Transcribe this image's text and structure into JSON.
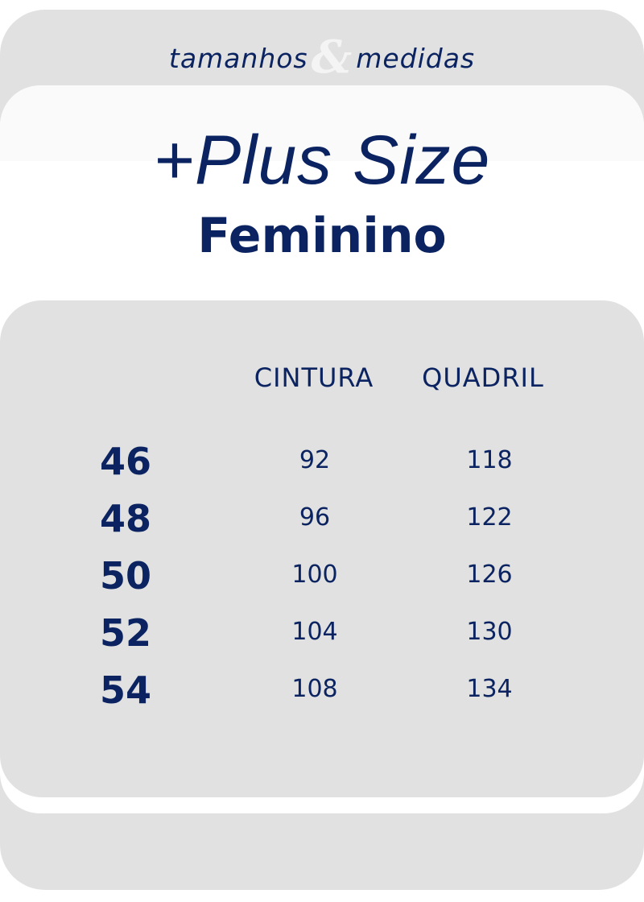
{
  "header": {
    "kicker_left": "tamanhos",
    "kicker_amp": "&",
    "kicker_right": "medidas"
  },
  "title": "+Plus Size",
  "subtitle": "Feminino",
  "colors": {
    "text": "#0b2461",
    "card": "#e1e1e1",
    "panel": "#ffffff"
  },
  "table": {
    "columns": [
      "CINTURA",
      "QUADRIL"
    ],
    "rows": [
      {
        "size": "46",
        "cintura": "92",
        "quadril": "118"
      },
      {
        "size": "48",
        "cintura": "96",
        "quadril": "122"
      },
      {
        "size": "50",
        "cintura": "100",
        "quadril": "126"
      },
      {
        "size": "52",
        "cintura": "104",
        "quadril": "130"
      },
      {
        "size": "54",
        "cintura": "108",
        "quadril": "134"
      }
    ]
  }
}
